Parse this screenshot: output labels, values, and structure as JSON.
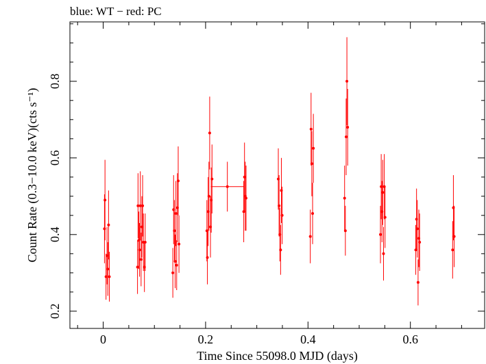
{
  "chart_data": {
    "type": "scatter",
    "title": "blue: WT − red: PC",
    "xlabel": "Time Since 55098.0 MJD (days)",
    "ylabel": "Count Rate (0.3−10.0 keV)(cts s⁻¹)",
    "xlim": [
      -0.065,
      0.745
    ],
    "ylim": [
      0.155,
      0.955
    ],
    "x_ticks": [
      0,
      0.2,
      0.4,
      0.6
    ],
    "x_tick_labels": [
      "0",
      "0.2",
      "0.4",
      "0.6"
    ],
    "y_ticks": [
      0.2,
      0.4,
      0.6,
      0.8
    ],
    "y_tick_labels": [
      "0.2",
      "0.4",
      "0.6",
      "0.8"
    ],
    "grid": false,
    "series": [
      {
        "color": "#ff0000",
        "points": [
          {
            "x": 0.0025,
            "y": 0.415,
            "yerr": 0.09
          },
          {
            "x": 0.0035,
            "y": 0.49,
            "yerr": 0.105
          },
          {
            "x": 0.0055,
            "y": 0.29,
            "yerr": 0.06
          },
          {
            "x": 0.0075,
            "y": 0.345,
            "yerr": 0.075
          },
          {
            "x": 0.009,
            "y": 0.31,
            "yerr": 0.07
          },
          {
            "x": 0.0105,
            "y": 0.425,
            "yerr": 0.09
          },
          {
            "x": 0.012,
            "y": 0.29,
            "yerr": 0.065
          },
          {
            "x": 0.067,
            "y": 0.315,
            "yerr": 0.07
          },
          {
            "x": 0.068,
            "y": 0.475,
            "yerr": 0.085
          },
          {
            "x": 0.0695,
            "y": 0.385,
            "yerr": 0.075
          },
          {
            "x": 0.071,
            "y": 0.36,
            "yerr": 0.07
          },
          {
            "x": 0.0725,
            "y": 0.475,
            "yerr": 0.09
          },
          {
            "x": 0.074,
            "y": 0.335,
            "yerr": 0.07
          },
          {
            "x": 0.0755,
            "y": 0.42,
            "yerr": 0.08
          },
          {
            "x": 0.077,
            "y": 0.475,
            "yerr": 0.08
          },
          {
            "x": 0.0785,
            "y": 0.38,
            "yerr": 0.075
          },
          {
            "x": 0.0805,
            "y": 0.315,
            "yerr": 0.065
          },
          {
            "x": 0.082,
            "y": 0.38,
            "yerr": 0.075
          },
          {
            "x": 0.136,
            "y": 0.3,
            "yerr": 0.065
          },
          {
            "x": 0.1375,
            "y": 0.465,
            "yerr": 0.09
          },
          {
            "x": 0.139,
            "y": 0.41,
            "yerr": 0.08
          },
          {
            "x": 0.1405,
            "y": 0.33,
            "yerr": 0.07
          },
          {
            "x": 0.142,
            "y": 0.455,
            "yerr": 0.085
          },
          {
            "x": 0.1435,
            "y": 0.32,
            "yerr": 0.065
          },
          {
            "x": 0.145,
            "y": 0.47,
            "yerr": 0.09
          },
          {
            "x": 0.1465,
            "y": 0.54,
            "yerr": 0.09
          },
          {
            "x": 0.148,
            "y": 0.375,
            "yerr": 0.075
          },
          {
            "x": 0.2025,
            "y": 0.41,
            "yerr": 0.08
          },
          {
            "x": 0.2035,
            "y": 0.34,
            "yerr": 0.07
          },
          {
            "x": 0.205,
            "y": 0.46,
            "yerr": 0.09
          },
          {
            "x": 0.2065,
            "y": 0.5,
            "yerr": 0.09
          },
          {
            "x": 0.208,
            "y": 0.665,
            "yerr": 0.095
          },
          {
            "x": 0.2095,
            "y": 0.42,
            "yerr": 0.08
          },
          {
            "x": 0.211,
            "y": 0.49,
            "yerr": 0.085
          },
          {
            "x": 0.2125,
            "y": 0.545,
            "yerr": 0.09
          },
          {
            "x": 0.2425,
            "y": 0.525,
            "yerr": 0.065,
            "xerr": 0.0325
          },
          {
            "x": 0.2745,
            "y": 0.46,
            "yerr": 0.08
          },
          {
            "x": 0.276,
            "y": 0.55,
            "yerr": 0.09
          },
          {
            "x": 0.2775,
            "y": 0.5,
            "yerr": 0.09
          },
          {
            "x": 0.279,
            "y": 0.495,
            "yerr": 0.085
          },
          {
            "x": 0.342,
            "y": 0.545,
            "yerr": 0.08
          },
          {
            "x": 0.3435,
            "y": 0.475,
            "yerr": 0.08
          },
          {
            "x": 0.345,
            "y": 0.4,
            "yerr": 0.07
          },
          {
            "x": 0.3465,
            "y": 0.36,
            "yerr": 0.065
          },
          {
            "x": 0.348,
            "y": 0.515,
            "yerr": 0.085
          },
          {
            "x": 0.3495,
            "y": 0.45,
            "yerr": 0.075
          },
          {
            "x": 0.4045,
            "y": 0.395,
            "yerr": 0.07
          },
          {
            "x": 0.406,
            "y": 0.675,
            "yerr": 0.095
          },
          {
            "x": 0.4075,
            "y": 0.585,
            "yerr": 0.085
          },
          {
            "x": 0.409,
            "y": 0.455,
            "yerr": 0.08
          },
          {
            "x": 0.4105,
            "y": 0.625,
            "yerr": 0.09
          },
          {
            "x": 0.4715,
            "y": 0.495,
            "yerr": 0.085
          },
          {
            "x": 0.473,
            "y": 0.41,
            "yerr": 0.065
          },
          {
            "x": 0.4745,
            "y": 0.655,
            "yerr": 0.1
          },
          {
            "x": 0.476,
            "y": 0.8,
            "yerr": 0.115
          },
          {
            "x": 0.4775,
            "y": 0.68,
            "yerr": 0.1
          },
          {
            "x": 0.5415,
            "y": 0.4,
            "yerr": 0.075
          },
          {
            "x": 0.543,
            "y": 0.525,
            "yerr": 0.085
          },
          {
            "x": 0.5445,
            "y": 0.46,
            "yerr": 0.08
          },
          {
            "x": 0.546,
            "y": 0.51,
            "yerr": 0.085
          },
          {
            "x": 0.5475,
            "y": 0.35,
            "yerr": 0.07
          },
          {
            "x": 0.549,
            "y": 0.525,
            "yerr": 0.085
          },
          {
            "x": 0.5505,
            "y": 0.445,
            "yerr": 0.08
          },
          {
            "x": 0.6105,
            "y": 0.36,
            "yerr": 0.065
          },
          {
            "x": 0.612,
            "y": 0.44,
            "yerr": 0.08
          },
          {
            "x": 0.6135,
            "y": 0.415,
            "yerr": 0.075
          },
          {
            "x": 0.615,
            "y": 0.275,
            "yerr": 0.06
          },
          {
            "x": 0.6165,
            "y": 0.39,
            "yerr": 0.075
          },
          {
            "x": 0.618,
            "y": 0.38,
            "yerr": 0.075
          },
          {
            "x": 0.6825,
            "y": 0.36,
            "yerr": 0.075
          },
          {
            "x": 0.684,
            "y": 0.47,
            "yerr": 0.085
          },
          {
            "x": 0.6855,
            "y": 0.395,
            "yerr": 0.08
          }
        ]
      }
    ]
  }
}
